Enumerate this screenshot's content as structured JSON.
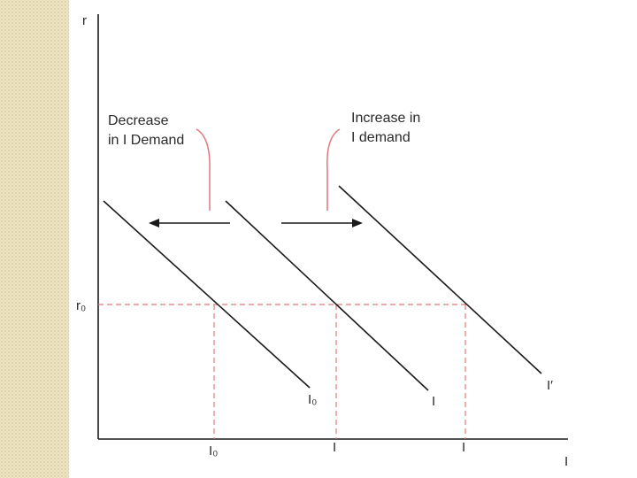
{
  "slide": {
    "accent_strip_color": "#efe6c6"
  },
  "diagram": {
    "axis_y_label": "r",
    "axis_x_label": "I",
    "rate_tick_label": "r₀",
    "x_tick_labels": [
      "I₀",
      "I",
      "I"
    ],
    "curves": [
      {
        "id": "i0",
        "label": "I₀"
      },
      {
        "id": "i",
        "label": "I"
      },
      {
        "id": "i-prime",
        "label": "I′"
      }
    ],
    "annotation_left": {
      "line1": "Decrease",
      "line2": "in I Demand"
    },
    "annotation_right": {
      "line1": "Increase in",
      "line2": "I demand"
    },
    "colors": {
      "line": "#1a1a1a",
      "guide": "#e0787a",
      "label": "#2a2a2a"
    }
  }
}
